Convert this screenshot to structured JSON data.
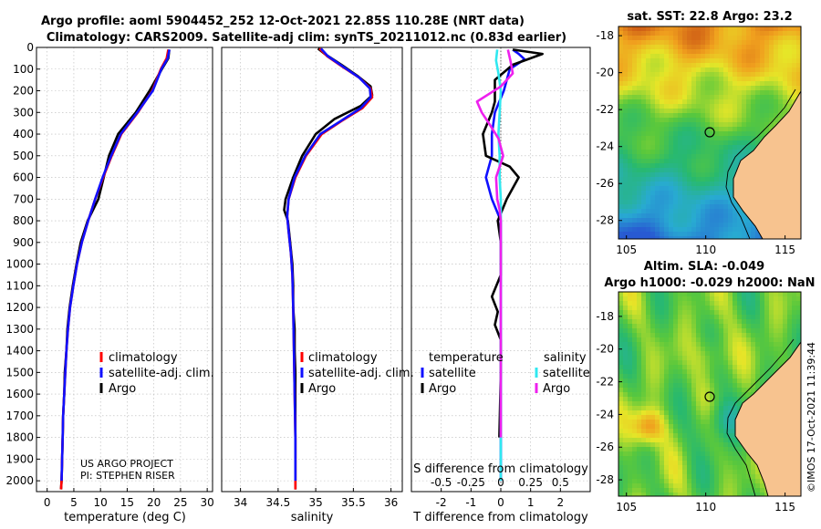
{
  "header": {
    "title_line1": "Argo profile: aoml 5904452_252 12-Oct-2021 22.85S 110.28E (NRT data)",
    "title_line2": "Climatology: CARS2009. Satellite-adj clim: synTS_20211012.nc (0.83d earlier)"
  },
  "credits": {
    "project": "US ARGO PROJECT",
    "pi": "PI: STEPHEN RISER",
    "stamp": "©IMOS 17-Oct-2021 11:39:44"
  },
  "colors": {
    "climatology": "#ff0000",
    "satellite": "#1010ff",
    "argo": "#000000",
    "sal_satellite": "#30e8f0",
    "sal_argo": "#ee20ee",
    "land": "#f7c38f"
  },
  "chart_data": [
    {
      "type": "line",
      "id": "temperature",
      "xlabel": "temperature (deg C)",
      "xlim": [
        -2,
        31
      ],
      "ylim": [
        2050,
        0
      ],
      "xticks": [
        0,
        5,
        10,
        15,
        20,
        25,
        30
      ],
      "yticks": [
        0,
        100,
        200,
        300,
        400,
        500,
        600,
        700,
        800,
        900,
        1000,
        1100,
        1200,
        1300,
        1400,
        1500,
        1600,
        1700,
        1800,
        1900,
        2000
      ],
      "legend": [
        "climatology",
        "satellite-adj. clim.",
        "Argo"
      ],
      "series": [
        {
          "name": "Argo",
          "color": "#000000",
          "points": [
            [
              22.9,
              10
            ],
            [
              22.7,
              50
            ],
            [
              21.5,
              100
            ],
            [
              19.2,
              200
            ],
            [
              16.6,
              300
            ],
            [
              13.3,
              400
            ],
            [
              11.6,
              500
            ],
            [
              10.6,
              600
            ],
            [
              9.6,
              700
            ],
            [
              7.6,
              800
            ],
            [
              6.3,
              900
            ],
            [
              5.5,
              1000
            ],
            [
              4.8,
              1100
            ],
            [
              4.2,
              1200
            ],
            [
              3.8,
              1300
            ],
            [
              3.6,
              1400
            ],
            [
              3.3,
              1500
            ],
            [
              3.2,
              1600
            ],
            [
              3.0,
              1700
            ],
            [
              2.9,
              1800
            ],
            [
              2.8,
              1900
            ],
            [
              2.7,
              2000
            ],
            [
              2.6,
              2040
            ]
          ]
        },
        {
          "name": "climatology",
          "color": "#ff0000",
          "points": [
            [
              22.7,
              10
            ],
            [
              22.4,
              50
            ],
            [
              21.3,
              100
            ],
            [
              19.7,
              200
            ],
            [
              17.0,
              300
            ],
            [
              13.9,
              400
            ],
            [
              12.1,
              500
            ],
            [
              10.5,
              600
            ],
            [
              9.0,
              700
            ],
            [
              7.7,
              800
            ],
            [
              6.5,
              900
            ],
            [
              5.6,
              1000
            ],
            [
              4.9,
              1100
            ],
            [
              4.3,
              1200
            ],
            [
              3.9,
              1300
            ],
            [
              3.6,
              1400
            ],
            [
              3.4,
              1500
            ],
            [
              3.2,
              1600
            ],
            [
              3.0,
              1700
            ],
            [
              2.9,
              1800
            ],
            [
              2.8,
              1900
            ],
            [
              2.7,
              2000
            ],
            [
              2.6,
              2040
            ]
          ]
        },
        {
          "name": "satellite-adj. clim.",
          "color": "#1010ff",
          "points": [
            [
              22.9,
              10
            ],
            [
              22.6,
              50
            ],
            [
              21.4,
              100
            ],
            [
              19.8,
              200
            ],
            [
              16.9,
              300
            ],
            [
              13.8,
              400
            ],
            [
              12.0,
              500
            ],
            [
              10.4,
              600
            ],
            [
              9.0,
              700
            ],
            [
              7.7,
              800
            ],
            [
              6.5,
              900
            ],
            [
              5.6,
              1000
            ],
            [
              4.9,
              1100
            ],
            [
              4.3,
              1200
            ],
            [
              3.9,
              1300
            ],
            [
              3.6,
              1400
            ],
            [
              3.4,
              1500
            ],
            [
              3.2,
              1600
            ],
            [
              3.0,
              1700
            ],
            [
              2.9,
              1800
            ],
            [
              2.8,
              1900
            ],
            [
              2.7,
              2000
            ]
          ]
        }
      ]
    },
    {
      "type": "line",
      "id": "salinity",
      "xlabel": "salinity",
      "xlim": [
        33.75,
        36.15
      ],
      "ylim": [
        2050,
        0
      ],
      "xticks": [
        34,
        34.5,
        35,
        35.5,
        36
      ],
      "legend": [
        "climatology",
        "satellite-adj. clim.",
        "Argo"
      ],
      "series": [
        {
          "name": "Argo",
          "color": "#000000",
          "points": [
            [
              35.03,
              5
            ],
            [
              35.12,
              30
            ],
            [
              35.34,
              80
            ],
            [
              35.55,
              130
            ],
            [
              35.73,
              180
            ],
            [
              35.75,
              220
            ],
            [
              35.6,
              270
            ],
            [
              35.25,
              330
            ],
            [
              35.0,
              400
            ],
            [
              34.82,
              500
            ],
            [
              34.7,
              600
            ],
            [
              34.6,
              700
            ],
            [
              34.58,
              750
            ],
            [
              34.63,
              800
            ],
            [
              34.66,
              900
            ],
            [
              34.69,
              1000
            ],
            [
              34.7,
              1100
            ],
            [
              34.7,
              1200
            ],
            [
              34.72,
              1300
            ],
            [
              34.72,
              1400
            ],
            [
              34.73,
              1500
            ],
            [
              34.73,
              1600
            ],
            [
              34.73,
              1700
            ],
            [
              34.73,
              1800
            ],
            [
              34.73,
              1900
            ],
            [
              34.73,
              2000
            ],
            [
              34.73,
              2040
            ]
          ]
        },
        {
          "name": "climatology",
          "color": "#ff0000",
          "points": [
            [
              35.05,
              5
            ],
            [
              35.15,
              40
            ],
            [
              35.36,
              90
            ],
            [
              35.58,
              140
            ],
            [
              35.73,
              190
            ],
            [
              35.75,
              230
            ],
            [
              35.62,
              280
            ],
            [
              35.34,
              340
            ],
            [
              35.08,
              400
            ],
            [
              34.87,
              500
            ],
            [
              34.73,
              600
            ],
            [
              34.64,
              700
            ],
            [
              34.62,
              780
            ],
            [
              34.64,
              850
            ],
            [
              34.67,
              950
            ],
            [
              34.69,
              1050
            ],
            [
              34.7,
              1200
            ],
            [
              34.71,
              1400
            ],
            [
              34.72,
              1600
            ],
            [
              34.73,
              1800
            ],
            [
              34.73,
              2040
            ]
          ]
        },
        {
          "name": "satellite-adj. clim.",
          "color": "#1010ff",
          "points": [
            [
              35.07,
              5
            ],
            [
              35.16,
              40
            ],
            [
              35.37,
              90
            ],
            [
              35.58,
              140
            ],
            [
              35.72,
              190
            ],
            [
              35.73,
              230
            ],
            [
              35.6,
              280
            ],
            [
              35.33,
              340
            ],
            [
              35.06,
              400
            ],
            [
              34.86,
              500
            ],
            [
              34.72,
              600
            ],
            [
              34.64,
              700
            ],
            [
              34.62,
              780
            ],
            [
              34.64,
              850
            ],
            [
              34.67,
              950
            ],
            [
              34.69,
              1050
            ],
            [
              34.7,
              1200
            ],
            [
              34.71,
              1400
            ],
            [
              34.72,
              1600
            ],
            [
              34.73,
              1800
            ],
            [
              34.73,
              2000
            ]
          ]
        }
      ]
    },
    {
      "type": "line",
      "id": "difference",
      "xlabel": "T difference from climatology",
      "xlabel_top": "S difference from climatology",
      "xlim": [
        -3,
        3
      ],
      "ylim": [
        2050,
        0
      ],
      "xticks": [
        -2,
        -1,
        0,
        1,
        2
      ],
      "xtick_labels": [
        "-2",
        "-1",
        "0",
        "1",
        "2"
      ],
      "sticks_labels": [
        "-0.5",
        "-0.25",
        "0",
        "0.25",
        "0.5"
      ],
      "legend_titles": [
        "temperature",
        "salinity"
      ],
      "legend_left": [
        "satellite",
        "Argo"
      ],
      "legend_right": [
        "satellite",
        "Argo"
      ],
      "series": [
        {
          "name": "T satellite",
          "color": "#1010ff",
          "points": [
            [
              0.4,
              10
            ],
            [
              0.6,
              30
            ],
            [
              0.8,
              55
            ],
            [
              0.3,
              100
            ],
            [
              0.1,
              200
            ],
            [
              -0.2,
              300
            ],
            [
              -0.3,
              400
            ],
            [
              -0.3,
              500
            ],
            [
              -0.5,
              600
            ],
            [
              -0.3,
              700
            ],
            [
              0.0,
              800
            ],
            [
              0.0,
              2000
            ]
          ]
        },
        {
          "name": "T Argo",
          "color": "#000000",
          "points": [
            [
              0.4,
              10
            ],
            [
              1.4,
              30
            ],
            [
              0.4,
              80
            ],
            [
              -0.2,
              150
            ],
            [
              -0.2,
              250
            ],
            [
              -0.3,
              300
            ],
            [
              -0.6,
              400
            ],
            [
              -0.5,
              500
            ],
            [
              0.3,
              550
            ],
            [
              0.6,
              600
            ],
            [
              0.2,
              700
            ],
            [
              -0.1,
              800
            ],
            [
              0.0,
              900
            ],
            [
              0.0,
              1050
            ],
            [
              -0.3,
              1150
            ],
            [
              -0.1,
              1220
            ],
            [
              -0.2,
              1280
            ],
            [
              0.0,
              1350
            ],
            [
              0.0,
              1500
            ],
            [
              -0.05,
              1800
            ]
          ]
        },
        {
          "name": "S satellite",
          "color": "#30e8f0",
          "points": [
            [
              -0.03,
              10
            ],
            [
              -0.04,
              60
            ],
            [
              -0.02,
              120
            ],
            [
              0.0,
              200
            ],
            [
              -0.01,
              300
            ],
            [
              -0.02,
              400
            ],
            [
              -0.01,
              500
            ],
            [
              -0.01,
              600
            ],
            [
              0.0,
              700
            ],
            [
              0.0,
              800
            ],
            [
              0.0,
              1000
            ],
            [
              0.0,
              1500
            ],
            [
              0.0,
              2000
            ]
          ]
        },
        {
          "name": "S Argo",
          "color": "#ee20ee",
          "points": [
            [
              0.06,
              10
            ],
            [
              0.08,
              60
            ],
            [
              0.1,
              120
            ],
            [
              0.0,
              180
            ],
            [
              -0.2,
              250
            ],
            [
              -0.16,
              300
            ],
            [
              -0.1,
              350
            ],
            [
              -0.02,
              420
            ],
            [
              0.02,
              500
            ],
            [
              -0.04,
              600
            ],
            [
              -0.03,
              700
            ],
            [
              -0.01,
              750
            ],
            [
              0.0,
              800
            ],
            [
              0.0,
              1000
            ],
            [
              0.0,
              1500
            ],
            [
              0.0,
              1800
            ]
          ]
        }
      ]
    },
    {
      "type": "heatmap",
      "id": "sst_map",
      "title": "sat. SST: 22.8 Argo: 23.2",
      "xlim": [
        104.5,
        116
      ],
      "ylim": [
        -29,
        -17.5
      ],
      "xticks": [
        105,
        110,
        115
      ],
      "yticks": [
        -18,
        -20,
        -22,
        -24,
        -26,
        -28
      ],
      "marker": [
        110.28,
        -22.85
      ]
    },
    {
      "type": "heatmap",
      "id": "sla_map",
      "title": "Altim. SLA: -0.049",
      "subtitle": "Argo h1000: -0.029 h2000: NaN",
      "xlim": [
        104.5,
        116
      ],
      "ylim": [
        -29,
        -16.5
      ],
      "xticks": [
        105,
        110,
        115
      ],
      "yticks": [
        -18,
        -20,
        -22,
        -24,
        -26,
        -28
      ],
      "marker": [
        110.28,
        -22.85
      ]
    }
  ]
}
